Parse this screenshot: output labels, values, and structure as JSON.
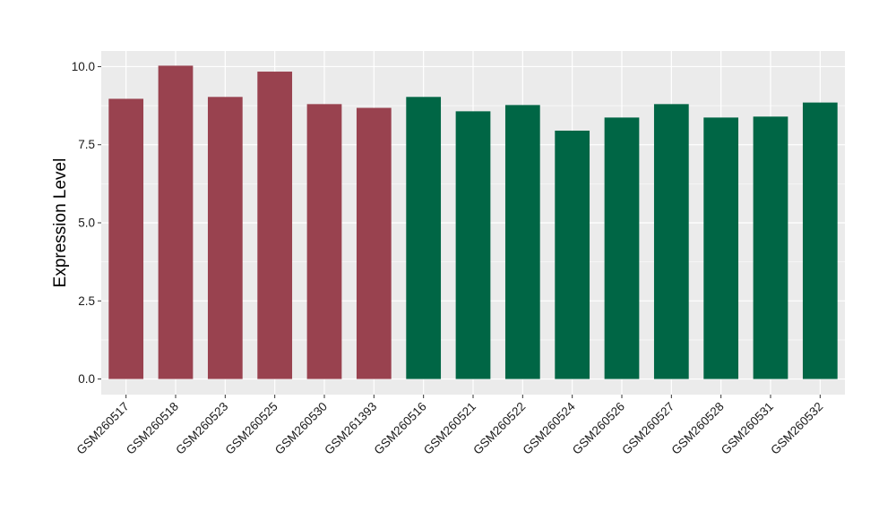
{
  "chart_data": {
    "type": "bar",
    "categories": [
      "GSM260517",
      "GSM260518",
      "GSM260523",
      "GSM260525",
      "GSM260530",
      "GSM261393",
      "GSM260516",
      "GSM260521",
      "GSM260522",
      "GSM260524",
      "GSM260526",
      "GSM260527",
      "GSM260528",
      "GSM260531",
      "GSM260532"
    ],
    "values": [
      8.97,
      10.03,
      9.03,
      9.84,
      8.8,
      8.68,
      9.03,
      8.57,
      8.77,
      7.95,
      8.37,
      8.8,
      8.37,
      8.4,
      8.85
    ],
    "groups": [
      1,
      1,
      1,
      1,
      1,
      1,
      2,
      2,
      2,
      2,
      2,
      2,
      2,
      2,
      2
    ],
    "group_colors": {
      "1": "#99424f",
      "2": "#006645"
    },
    "xlabel": "",
    "ylabel": "Expression Level",
    "ylim": [
      -0.5,
      10.5
    ],
    "yticks": [
      0.0,
      2.5,
      5.0,
      7.5,
      10.0
    ],
    "ytick_labels": [
      "0.0",
      "2.5",
      "5.0",
      "7.5",
      "10.0"
    ],
    "grid": true,
    "legend": "none",
    "panel_background": "#ebebeb",
    "grid_color": "#ffffff"
  }
}
